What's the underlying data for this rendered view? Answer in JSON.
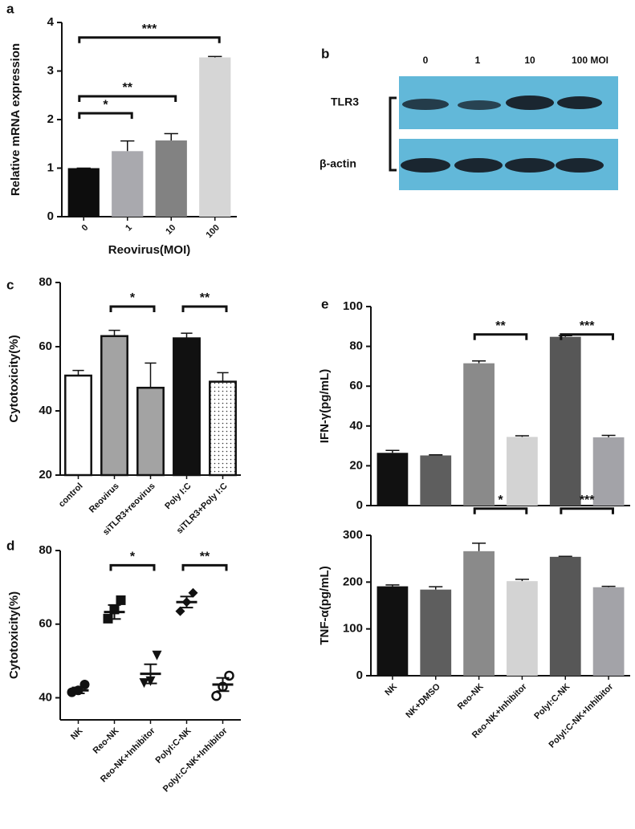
{
  "chart_data": [
    {
      "type": "bar",
      "panel": "a",
      "ylabel": "Relative mRNA expression",
      "xlabel": "Reovirus(MOI)",
      "categories": [
        "0",
        "1",
        "10",
        "100"
      ],
      "values": [
        1,
        1.35,
        1.57,
        3.28
      ],
      "errors": [
        0,
        0.21,
        0.14,
        0.02
      ],
      "colors": [
        "#0d0d0d",
        "#a9a9ae",
        "#828282",
        "#d6d6d6"
      ],
      "ylim": [
        0,
        4
      ],
      "yticks": [
        0,
        1,
        2,
        3,
        4
      ],
      "significance": [
        {
          "from": 0,
          "to": 1,
          "y": 2.13,
          "label": "*"
        },
        {
          "from": 0,
          "to": 2,
          "y": 2.48,
          "label": "**"
        },
        {
          "from": 0,
          "to": 3,
          "y": 3.69,
          "label": "***"
        }
      ]
    },
    {
      "type": "bar",
      "panel": "c",
      "ylabel": "Cytotoxicity(%)",
      "categories": [
        "control",
        "Reovirus",
        "siTLR3+reovirus",
        "Poly I:C",
        "siTLR3+Poly I:C"
      ],
      "values": [
        51,
        63.3,
        47.2,
        62.6,
        49.1
      ],
      "errors": [
        1.6,
        1.8,
        7.7,
        1.6,
        2.8
      ],
      "colors": [
        "#ffffff",
        "#a3a3a3",
        "#a3a3a3",
        "#111111",
        "#ffffff"
      ],
      "patterns": [
        "solid",
        "solid",
        "solid",
        "solid",
        "dotted"
      ],
      "outline": "#111111",
      "ylim": [
        20,
        80
      ],
      "yticks": [
        20,
        40,
        60,
        80
      ],
      "significance": [
        {
          "from": 1,
          "to": 2,
          "y": 72.5,
          "label": "*"
        },
        {
          "from": 3,
          "to": 4,
          "y": 72.5,
          "label": "**"
        }
      ]
    },
    {
      "type": "dotplot",
      "panel": "d",
      "ylabel": "Cytotoxicity(%)",
      "categories": [
        "NK",
        "Reo-NK",
        "Reo-NK+Inhibitor",
        "PolyI:C-NK",
        "PolyI:C-NK+Inhibitor"
      ],
      "points": [
        [
          41.5,
          42,
          43.6
        ],
        [
          61.5,
          64,
          66.5
        ],
        [
          44,
          44.5,
          51.5
        ],
        [
          63.5,
          66,
          68.5
        ],
        [
          40.5,
          43,
          46
        ]
      ],
      "means": [
        42,
        63.3,
        46.5,
        66,
        43.6
      ],
      "sems": [
        0.8,
        1.9,
        2.6,
        1.5,
        1.8
      ],
      "markers": [
        "circle",
        "square",
        "triangle",
        "diamond",
        "open-circle"
      ],
      "color": "#111111",
      "ylim": [
        34,
        80
      ],
      "yticks": [
        40,
        60,
        80
      ],
      "significance": [
        {
          "from": 1,
          "to": 2,
          "y": 76,
          "label": "*"
        },
        {
          "from": 3,
          "to": 4,
          "y": 76,
          "label": "**"
        }
      ]
    },
    {
      "type": "bar",
      "panel": "e",
      "ylabel": "IFN-γ(pg/mL)",
      "values": [
        26.5,
        25.2,
        71.5,
        34.5,
        84.8,
        34.3
      ],
      "errors": [
        1.2,
        0.3,
        1.2,
        0.6,
        0.6,
        1.0
      ],
      "colors": [
        "#111111",
        "#5e5e5e",
        "#8a8a8a",
        "#d3d3d3",
        "#575757",
        "#a3a3a8"
      ],
      "ylim": [
        0,
        100
      ],
      "yticks": [
        0,
        20,
        40,
        60,
        80,
        100
      ],
      "significance": [
        {
          "from": 2,
          "to": 3,
          "y": 86,
          "label": "**"
        },
        {
          "from": 4,
          "to": 5,
          "y": 86,
          "label": "***"
        }
      ]
    },
    {
      "type": "bar",
      "ylabel": "TNF-α(pg/mL)",
      "categories": [
        "NK",
        "NK+DMSO",
        "Reo-NK",
        "Reo-NK+Inhibitor",
        "PolyI:C-NK",
        "PolyI:C-NK+Inhibitor"
      ],
      "values": [
        191,
        184,
        266,
        202,
        254,
        189
      ],
      "errors": [
        3,
        6,
        17,
        4,
        1,
        2
      ],
      "colors": [
        "#111111",
        "#5e5e5e",
        "#8a8a8a",
        "#d3d3d3",
        "#575757",
        "#a3a3a8"
      ],
      "ylim": [
        0,
        300
      ],
      "yticks": [
        0,
        100,
        200,
        300
      ],
      "significance": [
        {
          "from": 2,
          "to": 3,
          "y": 357,
          "label": "*"
        },
        {
          "from": 4,
          "to": 5,
          "y": 357,
          "label": "***"
        }
      ]
    }
  ],
  "blot": {
    "panel": "b",
    "lanes": [
      "0",
      "1",
      "10",
      "100 MOI"
    ],
    "rows": [
      "TLR3",
      "β-actin"
    ]
  }
}
